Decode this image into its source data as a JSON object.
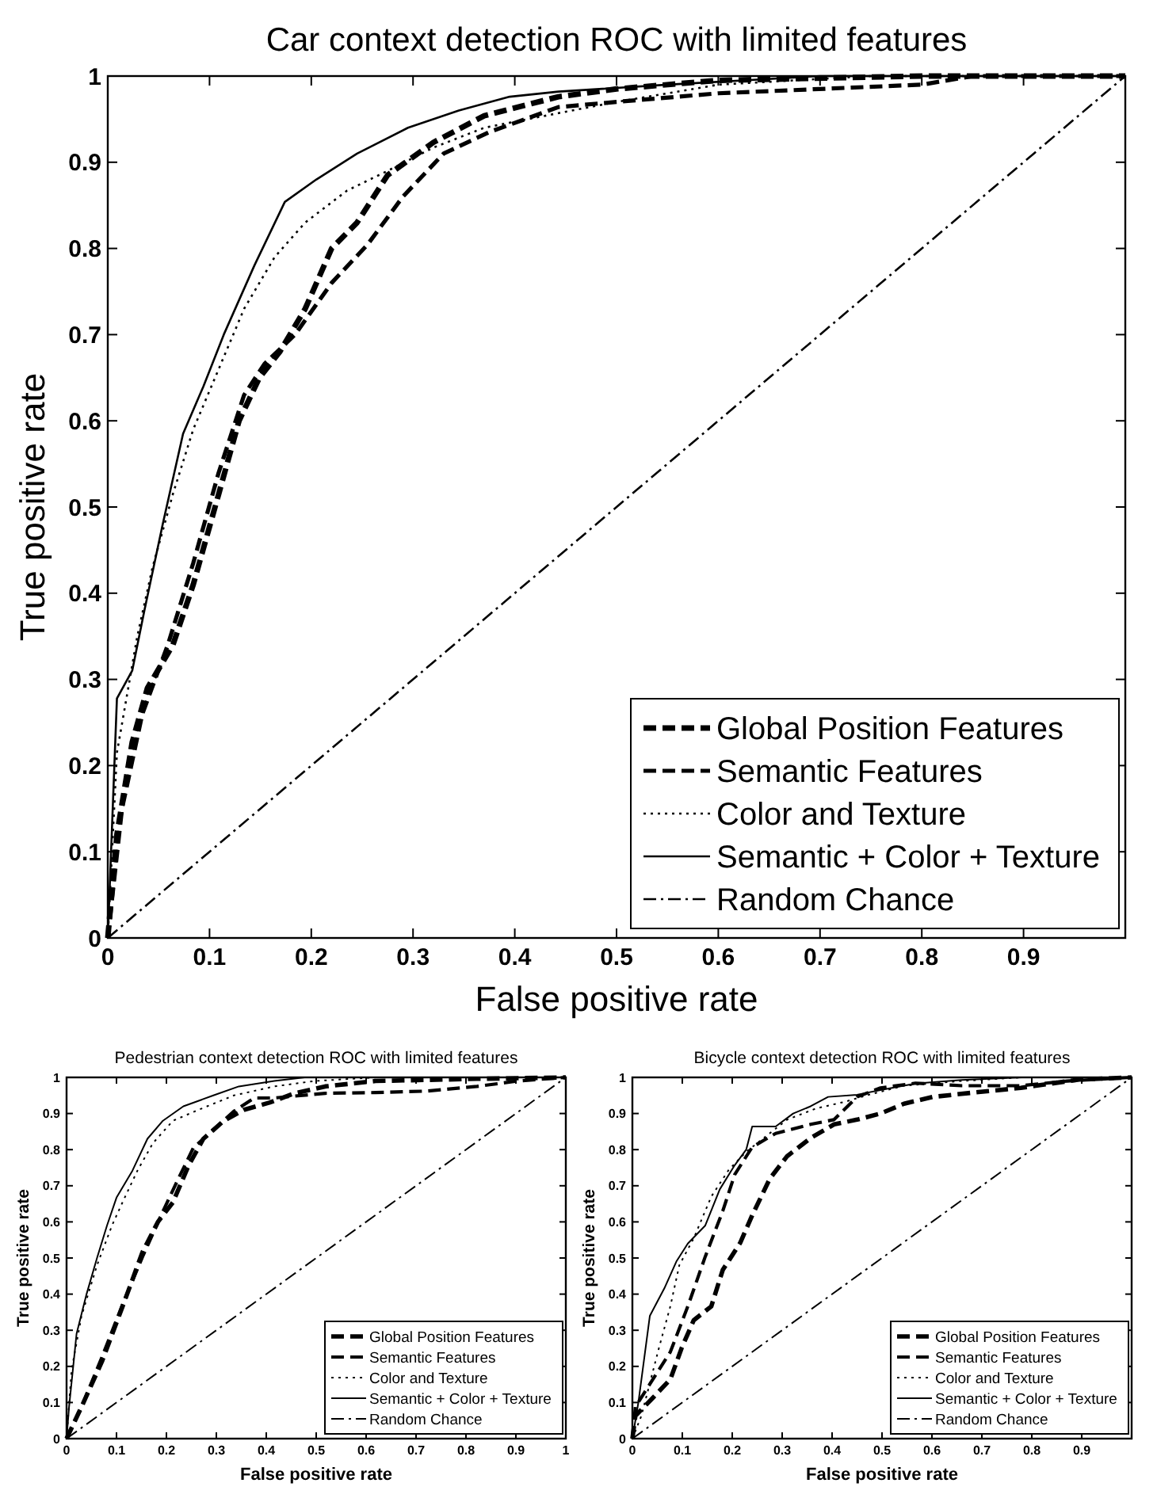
{
  "chart_data": [
    {
      "type": "line",
      "title": "Car context detection ROC with limited features",
      "xlabel": "False positive rate",
      "ylabel": "True positive rate",
      "xlim": [
        0,
        1
      ],
      "ylim": [
        0,
        1
      ],
      "xticks": [
        0,
        0.1,
        0.2,
        0.3,
        0.4,
        0.5,
        0.6,
        0.7,
        0.8,
        0.9
      ],
      "yticks": [
        0,
        0.1,
        0.2,
        0.3,
        0.4,
        0.5,
        0.6,
        0.7,
        0.8,
        0.9,
        1
      ],
      "legend": "bottom right",
      "series": [
        {
          "name": "Global Position Features",
          "color": "#000000",
          "line_style": "dashed",
          "x": [
            0,
            0.009,
            0.024,
            0.039,
            0.064,
            0.084,
            0.109,
            0.129,
            0.149,
            0.169,
            0.194,
            0.22,
            0.245,
            0.275,
            0.32,
            0.37,
            0.443,
            0.5,
            0.6,
            0.8,
            1
          ],
          "values": [
            0,
            0.12,
            0.227,
            0.29,
            0.34,
            0.41,
            0.515,
            0.6,
            0.65,
            0.68,
            0.73,
            0.8,
            0.83,
            0.885,
            0.923,
            0.954,
            0.976,
            0.985,
            0.995,
            1,
            1
          ]
        },
        {
          "name": "Semantic Features",
          "color": "#000000",
          "line_style": "dashed",
          "x": [
            0,
            0.014,
            0.034,
            0.059,
            0.084,
            0.109,
            0.134,
            0.154,
            0.184,
            0.22,
            0.255,
            0.29,
            0.33,
            0.375,
            0.443,
            0.5,
            0.6,
            0.8,
            0.85,
            1
          ],
          "values": [
            0,
            0.15,
            0.26,
            0.34,
            0.435,
            0.54,
            0.63,
            0.666,
            0.7,
            0.76,
            0.804,
            0.86,
            0.91,
            0.935,
            0.964,
            0.97,
            0.98,
            0.99,
            1,
            1
          ]
        },
        {
          "name": "Color and Texture",
          "color": "#000000",
          "line_style": "dotted",
          "x": [
            0,
            0.009,
            0.029,
            0.044,
            0.064,
            0.084,
            0.109,
            0.134,
            0.164,
            0.194,
            0.235,
            0.275,
            0.32,
            0.37,
            0.443,
            0.5,
            0.6,
            0.75,
            1
          ],
          "values": [
            0,
            0.215,
            0.35,
            0.43,
            0.515,
            0.59,
            0.66,
            0.73,
            0.79,
            0.83,
            0.867,
            0.89,
            0.917,
            0.94,
            0.957,
            0.97,
            0.99,
            1,
            1
          ]
        },
        {
          "name": "Semantic + Color + Texture",
          "color": "#000000",
          "line_style": "solid",
          "x": [
            0,
            0.009,
            0.024,
            0.036,
            0.054,
            0.074,
            0.094,
            0.114,
            0.144,
            0.174,
            0.205,
            0.245,
            0.295,
            0.345,
            0.395,
            0.443,
            0.55,
            0.7,
            1
          ],
          "values": [
            0,
            0.278,
            0.31,
            0.38,
            0.48,
            0.585,
            0.64,
            0.7,
            0.78,
            0.854,
            0.88,
            0.91,
            0.94,
            0.96,
            0.976,
            0.982,
            0.99,
            1,
            1
          ]
        },
        {
          "name": "Random Chance",
          "color": "#000000",
          "line_style": "dashdot",
          "x": [
            0,
            1
          ],
          "values": [
            0,
            1
          ]
        }
      ]
    },
    {
      "type": "line",
      "title": "Pedestrian context detection ROC with limited features",
      "xlabel": "False positive rate",
      "ylabel": "True positive rate",
      "xlim": [
        0,
        1
      ],
      "ylim": [
        0,
        1
      ],
      "xticks": [
        0,
        0.1,
        0.2,
        0.3,
        0.4,
        0.5,
        0.6,
        0.7,
        0.8,
        0.9,
        1
      ],
      "yticks": [
        0,
        0.1,
        0.2,
        0.3,
        0.4,
        0.5,
        0.6,
        0.7,
        0.8,
        0.9,
        1
      ],
      "legend": "bottom right",
      "series": [
        {
          "name": "Global Position Features",
          "color": "#000000",
          "line_style": "dashed",
          "x": [
            0,
            0.03,
            0.071,
            0.112,
            0.152,
            0.183,
            0.213,
            0.244,
            0.274,
            0.315,
            0.355,
            0.406,
            0.457,
            0.518,
            0.619,
            0.822,
            1
          ],
          "values": [
            0,
            0.088,
            0.214,
            0.365,
            0.516,
            0.6,
            0.654,
            0.755,
            0.83,
            0.88,
            0.91,
            0.93,
            0.956,
            0.975,
            0.99,
            0.996,
            1
          ]
        },
        {
          "name": "Semantic Features",
          "color": "#000000",
          "line_style": "dashed",
          "x": [
            0,
            0.03,
            0.071,
            0.112,
            0.152,
            0.193,
            0.223,
            0.254,
            0.294,
            0.335,
            0.376,
            0.416,
            0.518,
            0.619,
            0.72,
            0.822,
            0.904,
            1
          ],
          "values": [
            0,
            0.088,
            0.226,
            0.371,
            0.503,
            0.629,
            0.717,
            0.805,
            0.855,
            0.906,
            0.943,
            0.943,
            0.956,
            0.958,
            0.962,
            0.975,
            0.99,
            1
          ]
        },
        {
          "name": "Color and Texture",
          "color": "#000000",
          "line_style": "dotted",
          "x": [
            0,
            0.01,
            0.03,
            0.061,
            0.091,
            0.112,
            0.142,
            0.173,
            0.213,
            0.264,
            0.335,
            0.416,
            0.497,
            0.62,
            1
          ],
          "values": [
            0,
            0.19,
            0.34,
            0.48,
            0.59,
            0.654,
            0.742,
            0.818,
            0.88,
            0.91,
            0.95,
            0.975,
            0.99,
            1,
            1
          ]
        },
        {
          "name": "Semantic + Color + Texture",
          "color": "#000000",
          "line_style": "solid",
          "x": [
            0,
            0.005,
            0.02,
            0.04,
            0.061,
            0.081,
            0.1,
            0.132,
            0.162,
            0.193,
            0.234,
            0.294,
            0.345,
            0.416,
            0.477,
            1
          ],
          "values": [
            0,
            0.088,
            0.29,
            0.4,
            0.5,
            0.59,
            0.667,
            0.742,
            0.83,
            0.88,
            0.92,
            0.95,
            0.975,
            0.99,
            1,
            1
          ]
        },
        {
          "name": "Random Chance",
          "color": "#000000",
          "line_style": "dashdot",
          "x": [
            0,
            1
          ],
          "values": [
            0,
            1
          ]
        }
      ]
    },
    {
      "type": "line",
      "title": "Bicycle context detection ROC with limited features",
      "xlabel": "False positive rate",
      "ylabel": "True positive rate",
      "xlim": [
        0,
        1
      ],
      "ylim": [
        0,
        1
      ],
      "xticks": [
        0,
        0.1,
        0.2,
        0.3,
        0.4,
        0.5,
        0.6,
        0.7,
        0.8,
        0.9
      ],
      "yticks": [
        0,
        0.1,
        0.2,
        0.3,
        0.4,
        0.5,
        0.6,
        0.7,
        0.8,
        0.9,
        1
      ],
      "legend": "bottom right",
      "series": [
        {
          "name": "Global Position Features",
          "color": "#000000",
          "line_style": "dashed",
          "x": [
            0,
            0.006,
            0.041,
            0.076,
            0.099,
            0.123,
            0.158,
            0.181,
            0.216,
            0.24,
            0.275,
            0.31,
            0.357,
            0.404,
            0.45,
            0.497,
            0.544,
            0.602,
            0.684,
            0.778,
            0.895,
            1
          ],
          "values": [
            0,
            0.063,
            0.113,
            0.164,
            0.252,
            0.328,
            0.366,
            0.467,
            0.542,
            0.618,
            0.719,
            0.782,
            0.832,
            0.87,
            0.883,
            0.9,
            0.927,
            0.946,
            0.958,
            0.971,
            0.994,
            1
          ]
        },
        {
          "name": "Semantic Features",
          "color": "#000000",
          "line_style": "dashed",
          "x": [
            0,
            0.006,
            0.041,
            0.076,
            0.111,
            0.146,
            0.181,
            0.205,
            0.24,
            0.287,
            0.357,
            0.404,
            0.45,
            0.497,
            0.567,
            0.66,
            0.778,
            0.871,
            1
          ],
          "values": [
            0,
            0.088,
            0.164,
            0.24,
            0.366,
            0.504,
            0.63,
            0.731,
            0.807,
            0.845,
            0.87,
            0.883,
            0.946,
            0.971,
            0.984,
            0.977,
            0.977,
            0.99,
            1
          ]
        },
        {
          "name": "Color and Texture",
          "color": "#000000",
          "line_style": "dotted",
          "x": [
            0,
            0.018,
            0.053,
            0.076,
            0.094,
            0.123,
            0.158,
            0.193,
            0.228,
            0.263,
            0.31,
            0.368,
            0.427,
            0.474,
            0.544,
            0.66,
            0.78,
            1
          ],
          "values": [
            0,
            0.063,
            0.25,
            0.366,
            0.48,
            0.555,
            0.67,
            0.744,
            0.794,
            0.832,
            0.883,
            0.914,
            0.933,
            0.952,
            0.977,
            0.99,
            1,
            1
          ]
        },
        {
          "name": "Semantic + Color + Texture",
          "color": "#000000",
          "line_style": "solid",
          "x": [
            0,
            0.012,
            0.035,
            0.064,
            0.088,
            0.111,
            0.146,
            0.175,
            0.205,
            0.228,
            0.24,
            0.287,
            0.322,
            0.357,
            0.392,
            0.45,
            0.497,
            0.567,
            0.66,
            0.78,
            1
          ],
          "values": [
            0,
            0.1,
            0.34,
            0.416,
            0.49,
            0.54,
            0.59,
            0.69,
            0.757,
            0.8,
            0.864,
            0.864,
            0.9,
            0.92,
            0.946,
            0.952,
            0.965,
            0.983,
            0.993,
            1,
            1
          ]
        },
        {
          "name": "Random Chance",
          "color": "#000000",
          "line_style": "dashdot",
          "x": [
            0,
            1
          ],
          "values": [
            0,
            1
          ]
        }
      ]
    }
  ]
}
